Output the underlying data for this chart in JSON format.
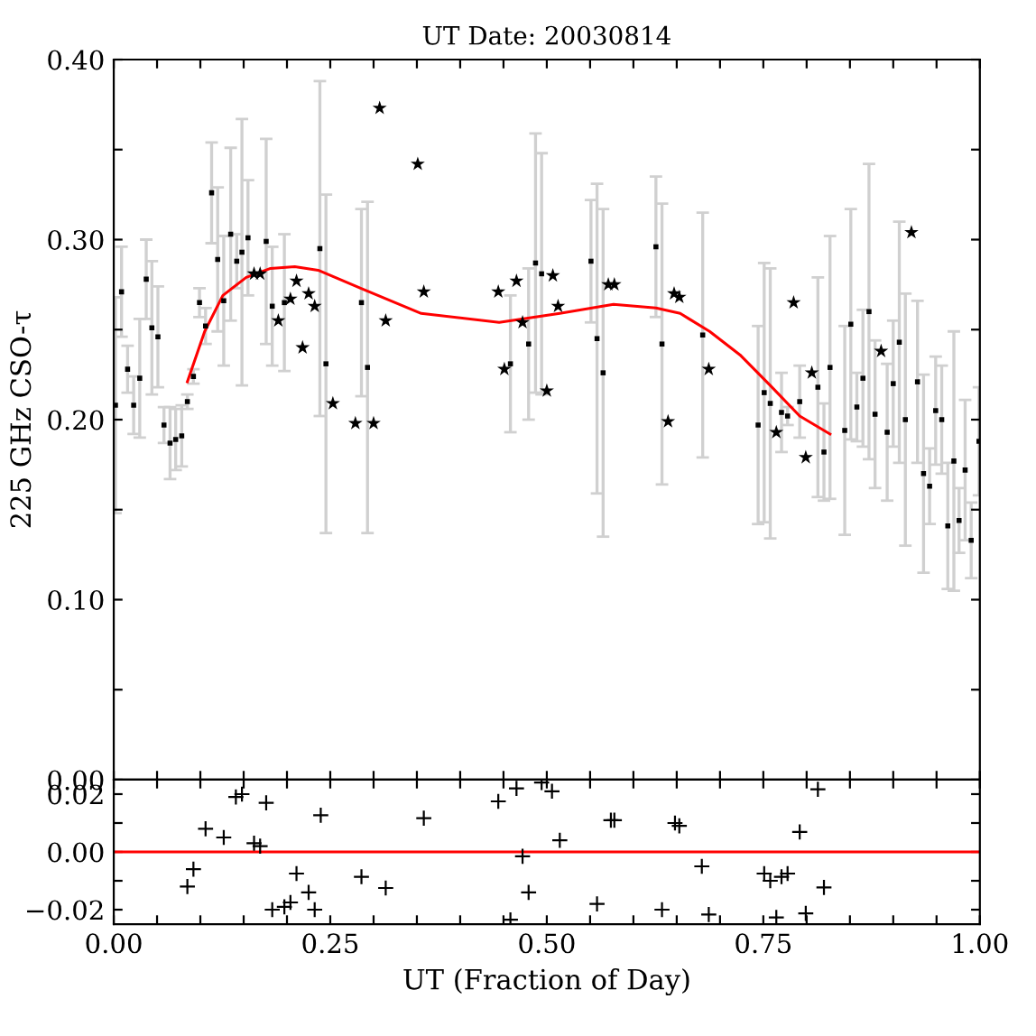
{
  "chart_data": [
    {
      "type": "scatter",
      "title": "UT Date: 20030814",
      "ylabel": "225 GHz CSO-τ",
      "xlim": [
        0,
        1
      ],
      "ylim": [
        0,
        0.4
      ],
      "xticks": [
        {
          "value": 0,
          "label": null
        },
        {
          "value": 0.05,
          "label": null
        },
        {
          "value": 0.1,
          "label": null
        },
        {
          "value": 0.15,
          "label": null
        },
        {
          "value": 0.2,
          "label": null
        },
        {
          "value": 0.25,
          "label": null
        },
        {
          "value": 0.3,
          "label": null
        },
        {
          "value": 0.35,
          "label": null
        },
        {
          "value": 0.4,
          "label": null
        },
        {
          "value": 0.45,
          "label": null
        },
        {
          "value": 0.5,
          "label": null
        },
        {
          "value": 0.55,
          "label": null
        },
        {
          "value": 0.6,
          "label": null
        },
        {
          "value": 0.65,
          "label": null
        },
        {
          "value": 0.7,
          "label": null
        },
        {
          "value": 0.75,
          "label": null
        },
        {
          "value": 0.8,
          "label": null
        },
        {
          "value": 0.85,
          "label": null
        },
        {
          "value": 0.9,
          "label": null
        },
        {
          "value": 0.95,
          "label": null
        },
        {
          "value": 1,
          "label": null
        }
      ],
      "yticks": [
        {
          "value": 0,
          "label": "0.00"
        },
        {
          "value": 0.05,
          "label": null
        },
        {
          "value": 0.1,
          "label": "0.10"
        },
        {
          "value": 0.15,
          "label": null
        },
        {
          "value": 0.2,
          "label": "0.20"
        },
        {
          "value": 0.25,
          "label": null
        },
        {
          "value": 0.3,
          "label": "0.30"
        },
        {
          "value": 0.35,
          "label": null
        },
        {
          "value": 0.4,
          "label": "0.40"
        }
      ],
      "tick_labels": "y",
      "grid": false,
      "legend": false,
      "series": [
        {
          "marker": "square",
          "color": "#000000",
          "x": [
            0.002,
            0.009,
            0.016,
            0.023,
            0.03,
            0.0375,
            0.044,
            0.051,
            0.058,
            0.065,
            0.0715,
            0.0785,
            0.085,
            0.092,
            0.099,
            0.106,
            0.113,
            0.12,
            0.127,
            0.135,
            0.142,
            0.148,
            0.155,
            0.176,
            0.183,
            0.197,
            0.238,
            0.245,
            0.286,
            0.293,
            0.458,
            0.479,
            0.487,
            0.494,
            0.551,
            0.558,
            0.565,
            0.626,
            0.633,
            0.68,
            0.744,
            0.751,
            0.758,
            0.771,
            0.778,
            0.792,
            0.813,
            0.82,
            0.827,
            0.844,
            0.851,
            0.858,
            0.865,
            0.872,
            0.879,
            0.893,
            0.9,
            0.907,
            0.914,
            0.928,
            0.935,
            0.942,
            0.949,
            0.956,
            0.963,
            0.97,
            0.976,
            0.983,
            0.99,
            0.999
          ],
          "values": [
            0.208,
            0.271,
            0.228,
            0.208,
            0.223,
            0.278,
            0.251,
            0.246,
            0.197,
            0.187,
            0.189,
            0.191,
            0.21,
            0.224,
            0.265,
            0.252,
            0.326,
            0.289,
            0.266,
            0.303,
            0.288,
            0.293,
            0.301,
            0.299,
            0.263,
            0.265,
            0.295,
            0.231,
            0.265,
            0.229,
            0.231,
            0.242,
            0.287,
            0.281,
            0.288,
            0.245,
            0.226,
            0.296,
            0.242,
            0.247,
            0.197,
            0.215,
            0.209,
            0.204,
            0.202,
            0.21,
            0.218,
            0.182,
            0.229,
            0.194,
            0.253,
            0.207,
            0.223,
            0.26,
            0.203,
            0.193,
            0.22,
            0.243,
            0.2,
            0.221,
            0.17,
            0.163,
            0.205,
            0.2,
            0.141,
            0.177,
            0.144,
            0.172,
            0.133,
            0.188
          ],
          "errors": [
            0.06,
            0.025,
            0.013,
            0.016,
            0.033,
            0.022,
            0.037,
            0.028,
            0.01,
            0.02,
            0.017,
            0.017,
            0.004,
            0.004,
            0.008,
            0.01,
            0.028,
            0.04,
            0.036,
            0.048,
            0.015,
            0.074,
            0.032,
            0.057,
            0.033,
            0.038,
            0.093,
            0.094,
            0.052,
            0.092,
            0.038,
            0.042,
            0.072,
            0.067,
            0.034,
            0.086,
            0.091,
            0.039,
            0.078,
            0.068,
            0.055,
            0.072,
            0.075,
            0.022,
            0.005,
            0.02,
            0.061,
            0.027,
            0.073,
            0.058,
            0.064,
            0.019,
            0.038,
            0.082,
            0.041,
            0.038,
            0.035,
            0.067,
            0.07,
            0.045,
            0.055,
            0.021,
            0.03,
            0.03,
            0.035,
            0.072,
            0.018,
            0.039,
            0.021,
            0.03
          ]
        },
        {
          "marker": "star",
          "color": "#000000",
          "x": [
            0.162,
            0.169,
            0.19,
            0.204,
            0.211,
            0.218,
            0.225,
            0.232,
            0.253,
            0.279,
            0.3,
            0.307,
            0.314,
            0.351,
            0.358,
            0.444,
            0.451,
            0.465,
            0.472,
            0.5,
            0.507,
            0.513,
            0.571,
            0.578,
            0.64,
            0.647,
            0.653,
            0.687,
            0.765,
            0.785,
            0.799,
            0.806,
            0.886,
            0.921
          ],
          "values": [
            0.281,
            0.281,
            0.255,
            0.267,
            0.277,
            0.24,
            0.27,
            0.263,
            0.209,
            0.198,
            0.198,
            0.373,
            0.255,
            0.342,
            0.271,
            0.271,
            0.228,
            0.277,
            0.254,
            0.216,
            0.28,
            0.263,
            0.275,
            0.275,
            0.199,
            0.27,
            0.268,
            0.228,
            0.193,
            0.265,
            0.179,
            0.226,
            0.238,
            0.304
          ]
        },
        {
          "type": "line",
          "marker": "none",
          "line_style": "solid",
          "color": "#ff0000",
          "x": [
            0.085,
            0.105,
            0.126,
            0.153,
            0.181,
            0.209,
            0.236,
            0.285,
            0.355,
            0.445,
            0.515,
            0.577,
            0.626,
            0.654,
            0.688,
            0.723,
            0.758,
            0.792,
            0.827
          ],
          "values": [
            0.221,
            0.249,
            0.269,
            0.279,
            0.284,
            0.285,
            0.283,
            0.273,
            0.259,
            0.254,
            0.259,
            0.264,
            0.262,
            0.259,
            0.249,
            0.236,
            0.219,
            0.202,
            0.192
          ]
        }
      ]
    },
    {
      "type": "scatter",
      "xlabel": "UT (Fraction of Day)",
      "xlim": [
        0,
        1
      ],
      "ylim": [
        -0.025,
        0.025
      ],
      "xticks": [
        {
          "value": 0,
          "label": "0.00"
        },
        {
          "value": 0.05,
          "label": null
        },
        {
          "value": 0.1,
          "label": null
        },
        {
          "value": 0.15,
          "label": null
        },
        {
          "value": 0.2,
          "label": null
        },
        {
          "value": 0.25,
          "label": "0.25"
        },
        {
          "value": 0.3,
          "label": null
        },
        {
          "value": 0.35,
          "label": null
        },
        {
          "value": 0.4,
          "label": null
        },
        {
          "value": 0.45,
          "label": null
        },
        {
          "value": 0.5,
          "label": "0.50"
        },
        {
          "value": 0.55,
          "label": null
        },
        {
          "value": 0.6,
          "label": null
        },
        {
          "value": 0.65,
          "label": null
        },
        {
          "value": 0.7,
          "label": null
        },
        {
          "value": 0.75,
          "label": "0.75"
        },
        {
          "value": 0.8,
          "label": null
        },
        {
          "value": 0.85,
          "label": null
        },
        {
          "value": 0.9,
          "label": null
        },
        {
          "value": 0.95,
          "label": null
        },
        {
          "value": 1,
          "label": "1.00"
        }
      ],
      "yticks": [
        {
          "value": -0.02,
          "label": "−0.02"
        },
        {
          "value": -0.01,
          "label": null
        },
        {
          "value": 0,
          "label": "0.00"
        },
        {
          "value": 0.01,
          "label": null
        },
        {
          "value": 0.02,
          "label": "0.02"
        }
      ],
      "grid": false,
      "legend": false,
      "ref_lines": [
        {
          "axis": "y",
          "value": 0,
          "color": "#ff0000",
          "line_style": "solid"
        }
      ],
      "series": [
        {
          "marker": "cross",
          "color": "#000000",
          "x": [
            0.085,
            0.092,
            0.106,
            0.127,
            0.141,
            0.148,
            0.162,
            0.169,
            0.176,
            0.183,
            0.197,
            0.204,
            0.211,
            0.225,
            0.232,
            0.239,
            0.286,
            0.314,
            0.358,
            0.444,
            0.458,
            0.465,
            0.472,
            0.479,
            0.494,
            0.506,
            0.515,
            0.558,
            0.574,
            0.578,
            0.633,
            0.648,
            0.653,
            0.679,
            0.687,
            0.751,
            0.758,
            0.765,
            0.771,
            0.778,
            0.792,
            0.799,
            0.813,
            0.82
          ],
          "values": [
            -0.012,
            -0.006,
            0.008,
            0.005,
            0.019,
            0.02,
            0.003,
            0.002,
            0.017,
            -0.02,
            -0.019,
            -0.0175,
            -0.0075,
            -0.014,
            -0.02,
            0.0127,
            -0.0086,
            -0.0125,
            0.0117,
            0.0175,
            -0.0235,
            0.022,
            -0.0015,
            -0.014,
            0.024,
            0.021,
            0.004,
            -0.018,
            0.011,
            0.011,
            -0.02,
            0.01,
            0.009,
            -0.005,
            -0.0217,
            -0.0075,
            -0.01,
            -0.0227,
            -0.0086,
            -0.0075,
            0.0069,
            -0.0213,
            0.0217,
            -0.0123
          ]
        }
      ]
    }
  ]
}
